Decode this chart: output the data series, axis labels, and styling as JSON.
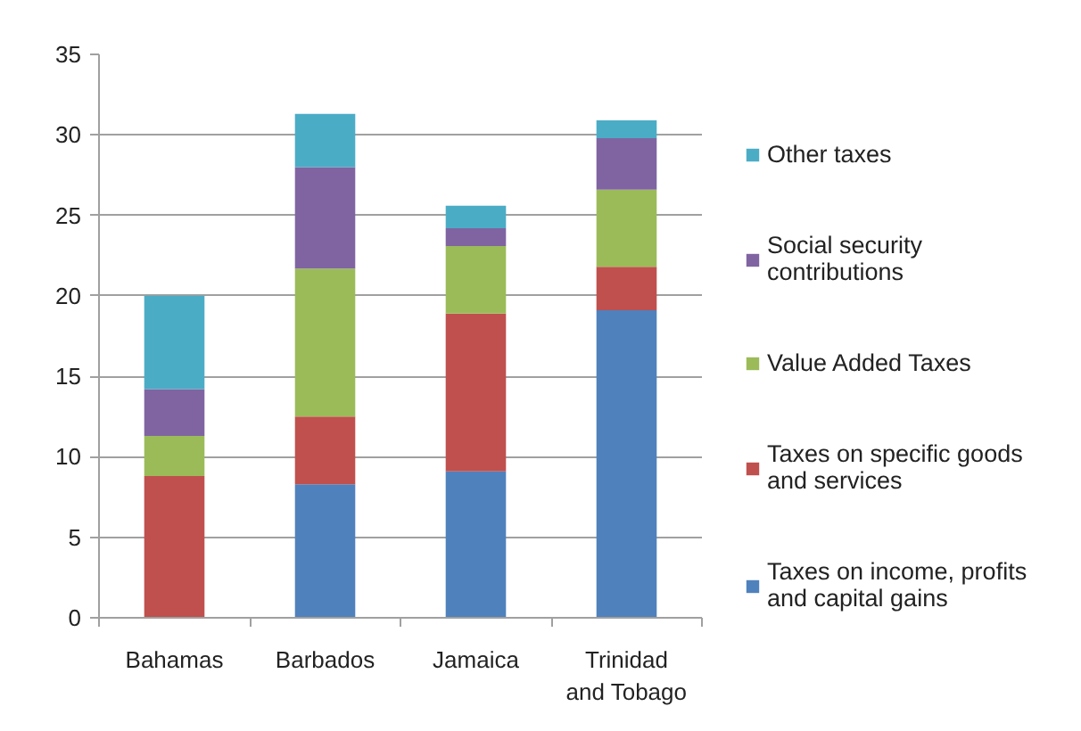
{
  "chart_data": {
    "type": "bar",
    "stacked": true,
    "categories": [
      "Bahamas",
      "Barbados",
      "Jamaica",
      "Trinidad and Tobago"
    ],
    "series": [
      {
        "name": "Taxes on income, profits and capital gains",
        "color": "#4f81bd",
        "values": [
          null,
          8.3,
          9.1,
          19.1
        ]
      },
      {
        "name": "Taxes on specific goods and services",
        "color": "#c0504d",
        "values": [
          8.8,
          4.2,
          9.8,
          2.7
        ]
      },
      {
        "name": "Value Added Taxes",
        "color": "#9bbb59",
        "values": [
          2.5,
          9.2,
          4.2,
          4.8
        ]
      },
      {
        "name": "Social security contributions",
        "color": "#8064a2",
        "values": [
          2.9,
          6.3,
          1.1,
          3.2
        ]
      },
      {
        "name": "Other taxes",
        "color": "#4bacc6",
        "values": [
          5.8,
          3.3,
          1.4,
          1.1
        ]
      }
    ],
    "ylim": [
      0,
      35
    ],
    "yticks": [
      0,
      5,
      10,
      15,
      20,
      25,
      30,
      35
    ],
    "grid": "y",
    "legend": "right"
  }
}
